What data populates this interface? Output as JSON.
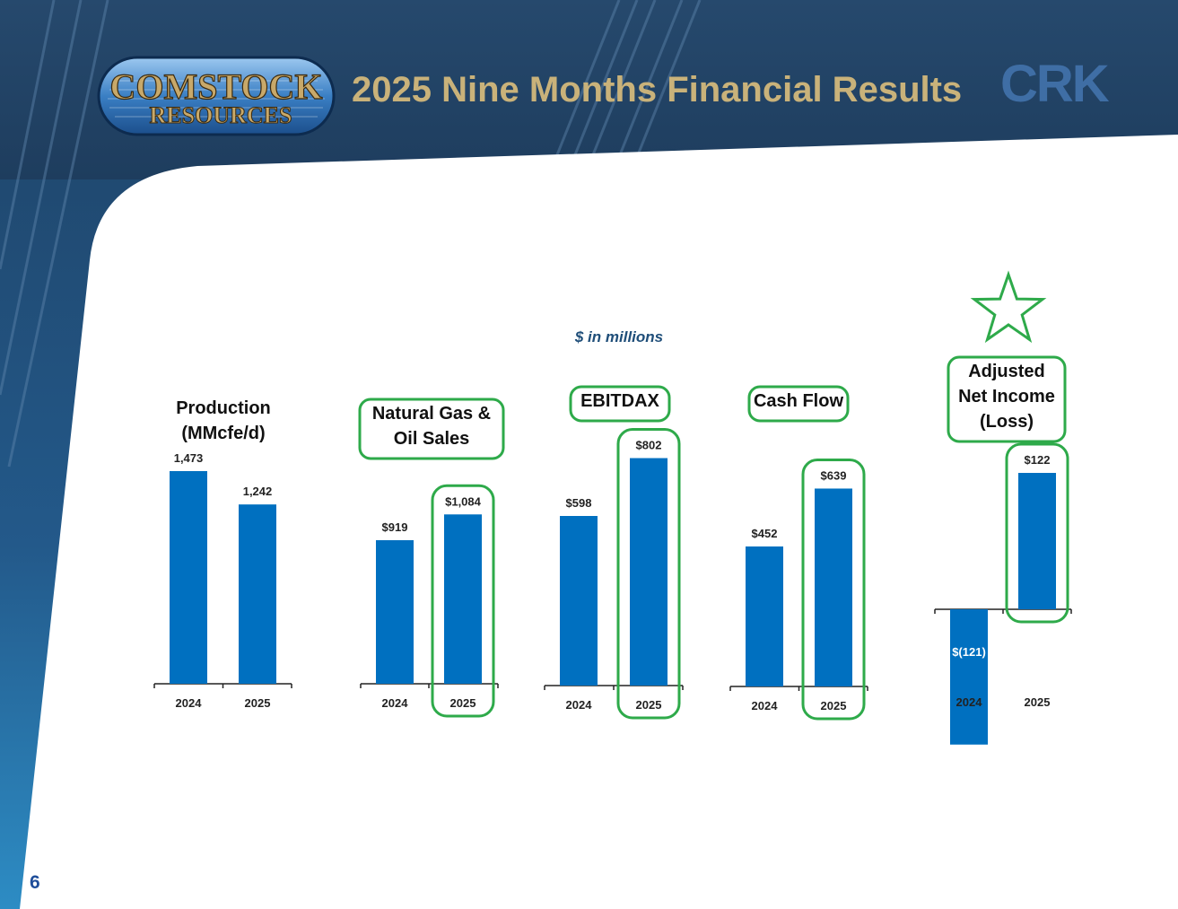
{
  "header": {
    "logo_line1": "COMSTOCK",
    "logo_line2": "RESOURCES",
    "title": "2025 Nine Months Financial Results",
    "ticker": "CRK"
  },
  "units_note": "$ in millions",
  "page_number": "6",
  "colors": {
    "bar": "#0070c0",
    "highlight": "#2eaa4a",
    "title": "#c9b27a",
    "header_bg": "#22466b"
  },
  "chart_data": [
    {
      "type": "bar",
      "title_lines": [
        "Production",
        "(MMcfe/d)"
      ],
      "categories": [
        "2024",
        "2025"
      ],
      "values": [
        1473,
        1242
      ],
      "value_labels": [
        "1,473",
        "1,242"
      ],
      "highlighted": []
    },
    {
      "type": "bar",
      "title_lines": [
        "Natural Gas &",
        "Oil Sales"
      ],
      "categories": [
        "2024",
        "2025"
      ],
      "values": [
        919,
        1084
      ],
      "value_labels": [
        "$919",
        "$1,084"
      ],
      "highlighted": [
        "2025"
      ]
    },
    {
      "type": "bar",
      "title_lines": [
        "EBITDAX"
      ],
      "categories": [
        "2024",
        "2025"
      ],
      "values": [
        598,
        802
      ],
      "value_labels": [
        "$598",
        "$802"
      ],
      "highlighted": [
        "2025"
      ]
    },
    {
      "type": "bar",
      "title_lines": [
        "Cash Flow"
      ],
      "categories": [
        "2024",
        "2025"
      ],
      "values": [
        452,
        639
      ],
      "value_labels": [
        "$452",
        "$639"
      ],
      "highlighted": [
        "2025"
      ]
    },
    {
      "type": "bar",
      "title_lines": [
        "Adjusted",
        "Net Income",
        "(Loss)"
      ],
      "categories": [
        "2024",
        "2025"
      ],
      "values": [
        -121,
        122
      ],
      "value_labels": [
        "$(121)",
        "$122"
      ],
      "highlighted": [
        "2025"
      ],
      "starred": true
    }
  ]
}
